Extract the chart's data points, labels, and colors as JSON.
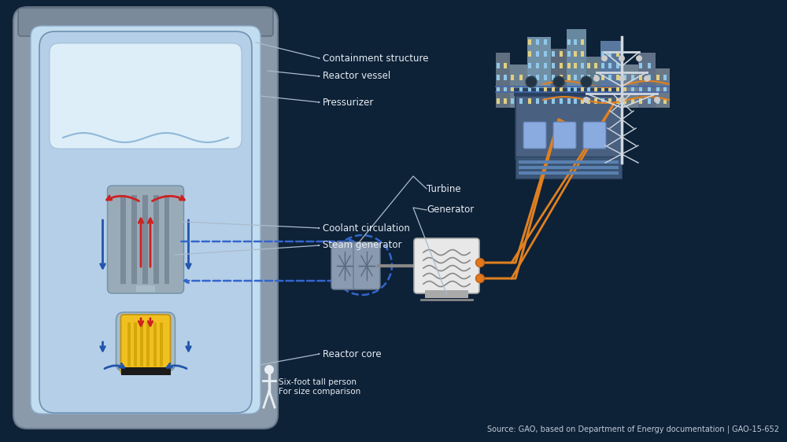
{
  "bg_color": "#0d2137",
  "title": "",
  "source_text": "Source: GAO, based on Department of Energy documentation | GAO-15-652",
  "labels": {
    "containment_structure": "Containment structure",
    "reactor_vessel": "Reactor vessel",
    "pressurizer": "Pressurizer",
    "coolant_circulation": "Coolant circulation",
    "steam_generator": "Steam generator",
    "reactor_core": "Reactor core",
    "turbine": "Turbine",
    "generator": "Generator",
    "person": "Six-foot tall person\nFor size comparison"
  },
  "colors": {
    "containment_outer": "#9aa5b0",
    "containment_inner": "#b8c5d0",
    "water_light": "#c8dff0",
    "water_deep": "#a8ccdf",
    "vessel_gray": "#8a9aaa",
    "reactor_core_yellow": "#f0c020",
    "reactor_core_dark": "#222222",
    "red_arrow": "#cc2222",
    "blue_arrow": "#2255aa",
    "blue_dashed": "#3366cc",
    "orange_line": "#e08020",
    "white_text": "#e8eef4",
    "turbine_color": "#7a8fa0",
    "generator_color": "#e8e8e8",
    "building_dark": "#3a5070",
    "building_light": "#6080a0",
    "city_dark": "#607080",
    "city_light": "#8090a0",
    "tower_white": "#d0d8e0",
    "label_line": "#aabbcc"
  }
}
